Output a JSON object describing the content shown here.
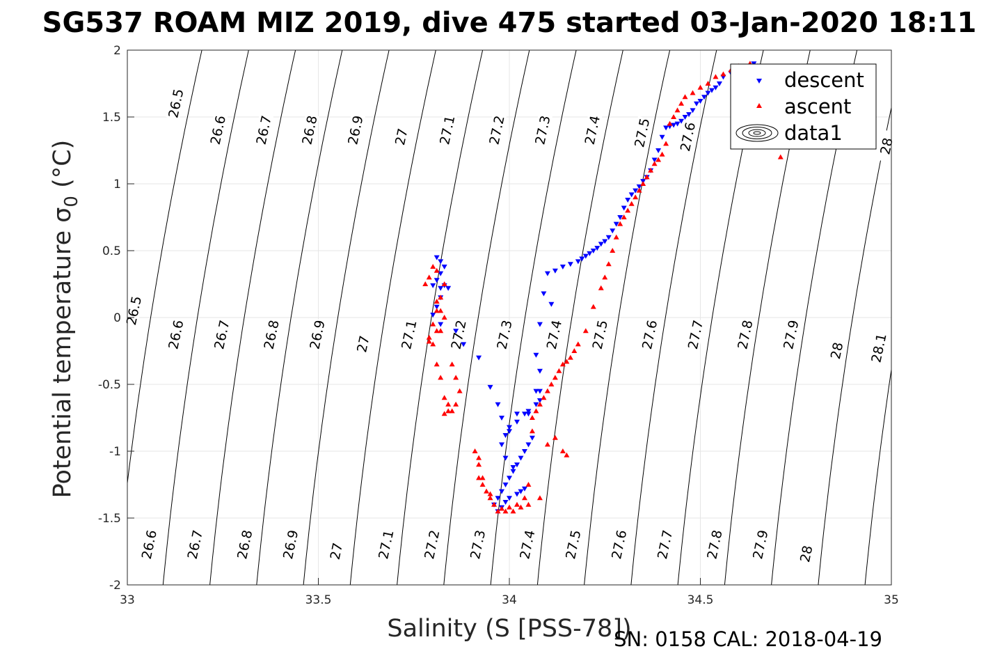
{
  "chart_data": {
    "type": "scatter",
    "title": "SG537 ROAM MIZ 2019, dive 475 started 03-Jan-2020 18:11",
    "xlabel": "Salinity (S [PSS-78])",
    "ylabel": "Potential temperature σ",
    "ylabel_subscript": "0",
    "ylabel_unit": " (°C)",
    "xlim": [
      33,
      35
    ],
    "ylim": [
      -2,
      2
    ],
    "xticks": [
      33,
      33.5,
      34,
      34.5,
      35
    ],
    "xtick_labels": [
      "33",
      "33.5",
      "34",
      "34.5",
      "35"
    ],
    "yticks": [
      -2,
      -1.5,
      -1,
      -0.5,
      0,
      0.5,
      1,
      1.5,
      2
    ],
    "ytick_labels": [
      "-2",
      "-1.5",
      "-1",
      "-0.5",
      "0",
      "0.5",
      "1",
      "1.5",
      "2"
    ],
    "grid": true,
    "legend_position": "top-right",
    "density_contours": {
      "levels": [
        "26.5",
        "26.6",
        "26.7",
        "26.8",
        "26.9",
        "27",
        "27.1",
        "27.2",
        "27.3",
        "27.4",
        "27.5",
        "27.6",
        "27.7",
        "27.8",
        "27.9",
        "28",
        "28.1"
      ],
      "labels": [
        {
          "text": "26.5",
          "s": 33.13,
          "t": 1.6
        },
        {
          "text": "26.6",
          "s": 33.24,
          "t": 1.4
        },
        {
          "text": "26.7",
          "s": 33.36,
          "t": 1.4
        },
        {
          "text": "26.8",
          "s": 33.48,
          "t": 1.4
        },
        {
          "text": "26.9",
          "s": 33.6,
          "t": 1.4
        },
        {
          "text": "27",
          "s": 33.72,
          "t": 1.35
        },
        {
          "text": "27.1",
          "s": 33.84,
          "t": 1.4
        },
        {
          "text": "27.2",
          "s": 33.97,
          "t": 1.4
        },
        {
          "text": "27.3",
          "s": 34.09,
          "t": 1.4
        },
        {
          "text": "27.4",
          "s": 34.22,
          "t": 1.4
        },
        {
          "text": "27.5",
          "s": 34.35,
          "t": 1.38
        },
        {
          "text": "27.6",
          "s": 34.47,
          "t": 1.35
        },
        {
          "text": "28",
          "s": 34.99,
          "t": 1.28
        },
        {
          "text": "26.5",
          "s": 33.02,
          "t": 0.05
        },
        {
          "text": "26.6",
          "s": 33.13,
          "t": -0.13
        },
        {
          "text": "26.7",
          "s": 33.25,
          "t": -0.13
        },
        {
          "text": "26.8",
          "s": 33.38,
          "t": -0.13
        },
        {
          "text": "26.9",
          "s": 33.5,
          "t": -0.13
        },
        {
          "text": "27",
          "s": 33.62,
          "t": -0.2
        },
        {
          "text": "27.1",
          "s": 33.74,
          "t": -0.13
        },
        {
          "text": "27.2",
          "s": 33.87,
          "t": -0.13
        },
        {
          "text": "27.3",
          "s": 33.99,
          "t": -0.13
        },
        {
          "text": "27.4",
          "s": 34.12,
          "t": -0.13
        },
        {
          "text": "27.5",
          "s": 34.24,
          "t": -0.13
        },
        {
          "text": "27.6",
          "s": 34.37,
          "t": -0.13
        },
        {
          "text": "27.7",
          "s": 34.49,
          "t": -0.13
        },
        {
          "text": "27.8",
          "s": 34.62,
          "t": -0.13
        },
        {
          "text": "27.9",
          "s": 34.74,
          "t": -0.13
        },
        {
          "text": "28",
          "s": 34.86,
          "t": -0.25
        },
        {
          "text": "28.1",
          "s": 34.97,
          "t": -0.23
        },
        {
          "text": "26.6",
          "s": 33.06,
          "t": -1.7
        },
        {
          "text": "26.7",
          "s": 33.18,
          "t": -1.7
        },
        {
          "text": "26.8",
          "s": 33.31,
          "t": -1.7
        },
        {
          "text": "26.9",
          "s": 33.43,
          "t": -1.7
        },
        {
          "text": "27",
          "s": 33.55,
          "t": -1.75
        },
        {
          "text": "27.1",
          "s": 33.68,
          "t": -1.7
        },
        {
          "text": "27.2",
          "s": 33.8,
          "t": -1.7
        },
        {
          "text": "27.3",
          "s": 33.92,
          "t": -1.7
        },
        {
          "text": "27.4",
          "s": 34.05,
          "t": -1.7
        },
        {
          "text": "27.5",
          "s": 34.17,
          "t": -1.7
        },
        {
          "text": "27.6",
          "s": 34.29,
          "t": -1.7
        },
        {
          "text": "27.7",
          "s": 34.41,
          "t": -1.7
        },
        {
          "text": "27.8",
          "s": 34.54,
          "t": -1.7
        },
        {
          "text": "27.9",
          "s": 34.66,
          "t": -1.7
        },
        {
          "text": "28",
          "s": 34.78,
          "t": -1.77
        }
      ]
    },
    "series": [
      {
        "name": "descent",
        "marker": "down-triangle",
        "color": "#0000ff",
        "x": [
          34.71,
          34.7,
          34.69,
          34.68,
          34.66,
          34.64,
          34.62,
          34.6,
          34.58,
          34.56,
          34.55,
          34.54,
          34.53,
          34.52,
          34.51,
          34.5,
          34.49,
          34.48,
          34.47,
          34.46,
          34.45,
          34.44,
          34.43,
          34.42,
          34.41,
          34.4,
          34.39,
          34.38,
          34.37,
          34.36,
          34.35,
          34.34,
          34.33,
          34.32,
          34.31,
          34.3,
          34.29,
          34.28,
          34.27,
          34.26,
          34.25,
          34.24,
          34.23,
          34.22,
          34.21,
          34.2,
          34.19,
          34.18,
          34.16,
          34.14,
          34.12,
          34.1,
          34.09,
          34.11,
          34.08,
          33.81,
          33.82,
          33.83,
          33.82,
          33.81,
          33.8,
          33.82,
          33.83,
          33.84,
          33.82,
          33.81,
          33.8,
          33.82,
          33.86,
          33.88,
          33.92,
          33.95,
          33.97,
          33.98,
          34.0,
          34.02,
          34.04,
          34.05,
          34.07,
          34.08,
          34.08,
          34.07,
          34.06,
          34.05,
          34.04,
          34.03,
          34.02,
          34.01,
          34.0,
          33.99,
          33.98,
          33.97,
          33.96,
          33.97,
          33.98,
          33.99,
          34.0,
          34.02,
          34.03,
          34.04,
          34.01,
          33.99,
          33.98,
          33.99,
          34.0,
          34.02,
          34.05,
          34.08,
          34.07
        ],
        "y": [
          1.3,
          1.5,
          1.6,
          1.75,
          1.85,
          1.9,
          1.88,
          1.85,
          1.83,
          1.8,
          1.75,
          1.72,
          1.7,
          1.68,
          1.65,
          1.62,
          1.6,
          1.55,
          1.52,
          1.5,
          1.47,
          1.45,
          1.44,
          1.43,
          1.42,
          1.35,
          1.25,
          1.18,
          1.1,
          1.05,
          1.02,
          0.98,
          0.95,
          0.92,
          0.88,
          0.82,
          0.75,
          0.7,
          0.65,
          0.6,
          0.57,
          0.55,
          0.52,
          0.5,
          0.48,
          0.46,
          0.44,
          0.42,
          0.4,
          0.38,
          0.35,
          0.33,
          0.18,
          0.1,
          -0.05,
          0.45,
          0.42,
          0.38,
          0.33,
          0.28,
          0.24,
          0.22,
          0.24,
          0.22,
          0.15,
          0.08,
          0.02,
          -0.05,
          -0.1,
          -0.2,
          -0.3,
          -0.52,
          -0.65,
          -0.75,
          -0.85,
          -0.72,
          -0.72,
          -0.7,
          -0.65,
          -0.55,
          -0.4,
          -0.28,
          -0.9,
          -0.95,
          -1.0,
          -1.05,
          -1.1,
          -1.15,
          -1.2,
          -1.25,
          -1.3,
          -1.35,
          -1.4,
          -1.45,
          -1.42,
          -1.38,
          -1.35,
          -1.32,
          -1.3,
          -1.28,
          -1.12,
          -1.05,
          -0.95,
          -0.88,
          -0.82,
          -0.78,
          -0.72,
          -0.62,
          -0.55
        ]
      },
      {
        "name": "ascent",
        "marker": "up-triangle",
        "color": "#ff0000",
        "x": [
          34.71,
          34.7,
          34.69,
          34.68,
          34.67,
          34.65,
          34.63,
          34.6,
          34.58,
          34.56,
          34.54,
          34.52,
          34.5,
          34.48,
          34.46,
          34.45,
          34.44,
          34.43,
          34.42,
          34.41,
          34.4,
          34.39,
          34.38,
          34.37,
          34.36,
          34.35,
          34.34,
          34.33,
          34.32,
          34.31,
          34.3,
          34.29,
          34.28,
          34.27,
          34.26,
          34.25,
          34.24,
          34.22,
          34.2,
          34.18,
          34.17,
          34.16,
          34.15,
          34.14,
          34.13,
          34.12,
          34.11,
          34.1,
          34.09,
          34.08,
          34.07,
          34.06,
          34.06,
          34.05,
          34.04,
          34.02,
          34.0,
          33.98,
          33.96,
          33.95,
          33.94,
          33.93,
          33.92,
          33.92,
          33.91,
          33.92,
          33.93,
          33.95,
          33.97,
          33.99,
          34.01,
          34.03,
          34.05,
          34.08,
          34.1,
          34.12,
          34.14,
          34.15,
          33.85,
          33.84,
          33.83,
          33.82,
          33.81,
          33.8,
          33.79,
          33.8,
          33.81,
          33.82,
          33.83,
          33.81,
          33.8,
          33.79,
          33.78,
          33.81,
          33.82,
          33.83,
          33.81,
          33.79,
          33.82,
          33.85,
          33.86,
          33.87,
          33.86,
          33.84,
          33.83
        ],
        "y": [
          1.2,
          1.3,
          1.45,
          1.6,
          1.75,
          1.88,
          1.9,
          1.88,
          1.85,
          1.82,
          1.8,
          1.75,
          1.72,
          1.68,
          1.65,
          1.6,
          1.55,
          1.5,
          1.45,
          1.3,
          1.22,
          1.18,
          1.15,
          1.1,
          1.05,
          1.0,
          0.95,
          0.9,
          0.85,
          0.8,
          0.75,
          0.7,
          0.6,
          0.5,
          0.4,
          0.3,
          0.22,
          0.08,
          -0.1,
          -0.2,
          -0.25,
          -0.3,
          -0.33,
          -0.35,
          -0.4,
          -0.45,
          -0.5,
          -0.55,
          -0.6,
          -0.65,
          -0.7,
          -0.75,
          -0.85,
          -1.25,
          -1.35,
          -1.4,
          -1.42,
          -1.43,
          -1.4,
          -1.35,
          -1.3,
          -1.25,
          -1.2,
          -1.1,
          -1.0,
          -1.05,
          -1.2,
          -1.32,
          -1.45,
          -1.45,
          -1.45,
          -1.42,
          -1.4,
          -1.35,
          -0.95,
          -0.9,
          -1.0,
          -1.03,
          -0.7,
          -0.65,
          -0.6,
          -0.45,
          -0.35,
          -0.2,
          -0.15,
          -0.05,
          0.05,
          0.15,
          0.25,
          0.35,
          0.38,
          0.3,
          0.25,
          0.12,
          0.05,
          0.0,
          -0.1,
          -0.18,
          -0.1,
          -0.35,
          -0.45,
          -0.55,
          -0.65,
          -0.7,
          -0.72
        ]
      },
      {
        "name": "data1",
        "marker": "contour",
        "color": "#000000",
        "x": [],
        "y": []
      }
    ]
  },
  "footer": {
    "sn_cal": "SN: 0158  CAL: 2018-04-19"
  }
}
